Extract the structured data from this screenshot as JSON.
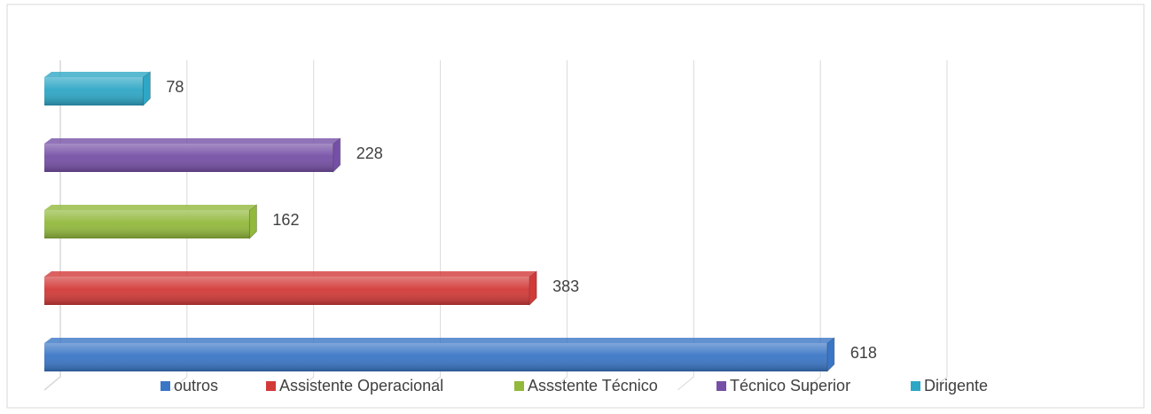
{
  "chart_data": {
    "type": "bar",
    "orientation": "horizontal",
    "series": [
      {
        "name": "outros",
        "color": "#3a76c6",
        "values": [
          618
        ]
      },
      {
        "name": "Assistente Operacional",
        "color": "#d23a38",
        "values": [
          383
        ]
      },
      {
        "name": "Assstente Técnico",
        "color": "#92b93c",
        "values": [
          162
        ]
      },
      {
        "name": "Técnico Superior",
        "color": "#7650a6",
        "values": [
          228
        ]
      },
      {
        "name": "Dirigente",
        "color": "#2ea7c6",
        "values": [
          78
        ]
      }
    ],
    "xlim": [
      0,
      700
    ],
    "xticks": [
      0,
      100,
      200,
      300,
      400,
      500,
      600,
      700
    ],
    "grid": true,
    "legend": "bottom"
  }
}
